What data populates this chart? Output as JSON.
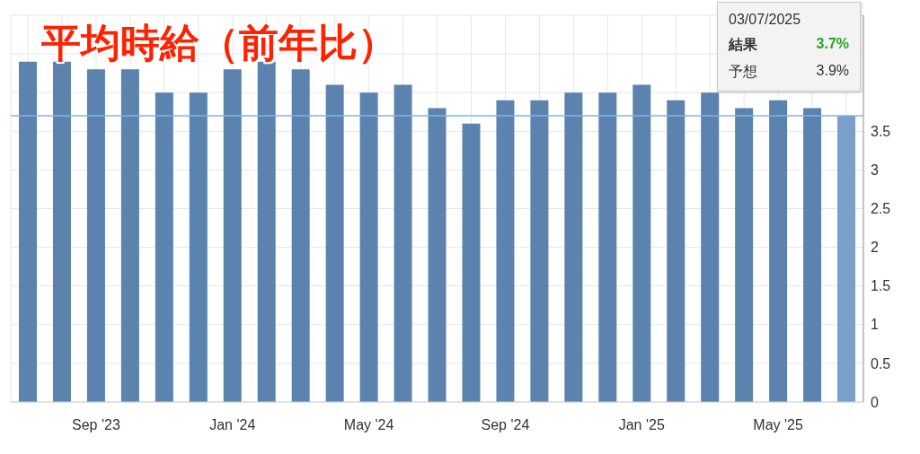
{
  "chart_data": {
    "type": "bar",
    "title": "平均時給（前年比）",
    "categories": [
      null,
      null,
      "Sep '23",
      null,
      null,
      null,
      "Jan '24",
      null,
      null,
      null,
      "May '24",
      null,
      null,
      null,
      "Sep '24",
      null,
      null,
      null,
      "Jan '25",
      null,
      null,
      null,
      "May '25",
      null,
      null
    ],
    "values": [
      4.4,
      4.4,
      4.3,
      4.3,
      4.0,
      4.0,
      4.3,
      4.4,
      4.3,
      4.1,
      4.0,
      4.1,
      3.8,
      3.6,
      3.9,
      3.9,
      4.0,
      4.0,
      4.1,
      3.9,
      4.0,
      3.8,
      3.9,
      3.8,
      3.7
    ],
    "colors": [
      "#5b83ae",
      "#5b83ae",
      "#5b83ae",
      "#5b83ae",
      "#5b83ae",
      "#5b83ae",
      "#5b83ae",
      "#5b83ae",
      "#5b83ae",
      "#5b83ae",
      "#5b83ae",
      "#5b83ae",
      "#5b83ae",
      "#5b83ae",
      "#5b83ae",
      "#5b83ae",
      "#5b83ae",
      "#5b83ae",
      "#5b83ae",
      "#5b83ae",
      "#5b83ae",
      "#5b83ae",
      "#5b83ae",
      "#5b83ae",
      "#7a9fcb"
    ],
    "ylim": [
      0,
      5
    ],
    "yticks": [
      0,
      0.5,
      1,
      1.5,
      2,
      2.5,
      3,
      3.5,
      {
        "value": 4,
        "label": null
      },
      {
        "value": 4.5,
        "label": null
      },
      {
        "value": 5,
        "label": null
      }
    ],
    "grid": true,
    "ref_lines": [
      {
        "axis": "y",
        "value": 3.7,
        "color": "#7cb5ec"
      }
    ],
    "annotations": [
      "03/07/2025",
      "結果",
      "3.7%",
      "予想",
      "3.9%"
    ]
  }
}
